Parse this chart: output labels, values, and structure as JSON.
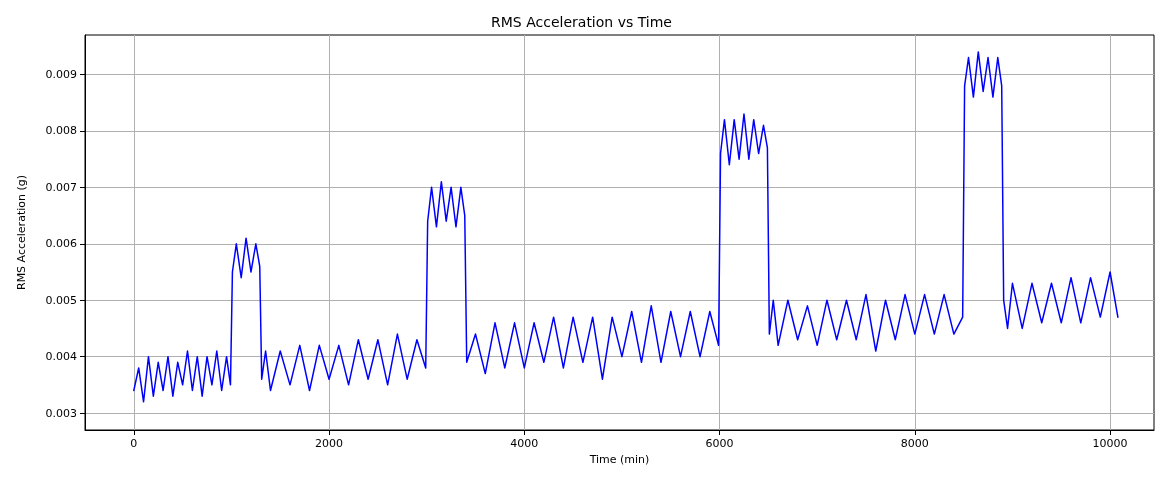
{
  "chart_data": {
    "type": "line",
    "title": "RMS Acceleration vs Time",
    "xlabel": "Time (min)",
    "ylabel": "RMS Acceleration (g)",
    "xlim": [
      -500,
      10450
    ],
    "xticks": [
      0,
      2000,
      4000,
      6000,
      8000,
      10000
    ],
    "ylim": [
      0.0027,
      0.0097
    ],
    "yticks": [
      0.003,
      0.004,
      0.005,
      0.006,
      0.007,
      0.008,
      0.009
    ],
    "grid": true,
    "marker": "none",
    "line_style": "solid",
    "series": [
      {
        "color": "#0000ff",
        "x": [
          0,
          50,
          100,
          150,
          200,
          250,
          300,
          350,
          400,
          450,
          500,
          550,
          600,
          650,
          700,
          750,
          800,
          850,
          900,
          950,
          990,
          1010,
          1050,
          1100,
          1150,
          1200,
          1250,
          1290,
          1310,
          1350,
          1400,
          1500,
          1600,
          1700,
          1800,
          1900,
          2000,
          2100,
          2200,
          2300,
          2400,
          2500,
          2600,
          2700,
          2800,
          2900,
          2990,
          3010,
          3050,
          3100,
          3150,
          3200,
          3250,
          3300,
          3350,
          3390,
          3410,
          3500,
          3600,
          3700,
          3800,
          3900,
          4000,
          4100,
          4200,
          4300,
          4400,
          4500,
          4600,
          4700,
          4800,
          4900,
          5000,
          5100,
          5200,
          5300,
          5400,
          5500,
          5600,
          5700,
          5800,
          5900,
          5990,
          6010,
          6050,
          6100,
          6150,
          6200,
          6250,
          6300,
          6350,
          6400,
          6450,
          6490,
          6510,
          6550,
          6600,
          6700,
          6800,
          6900,
          7000,
          7100,
          7200,
          7300,
          7400,
          7500,
          7600,
          7700,
          7800,
          7900,
          8000,
          8100,
          8200,
          8300,
          8400,
          8490,
          8510,
          8550,
          8600,
          8650,
          8700,
          8750,
          8800,
          8850,
          8890,
          8910,
          8950,
          9000,
          9100,
          9200,
          9300,
          9400,
          9500,
          9600,
          9700,
          9800,
          9900,
          10000,
          10080
        ],
        "values": [
          0.0034,
          0.0038,
          0.0032,
          0.004,
          0.0033,
          0.0039,
          0.0034,
          0.004,
          0.0033,
          0.0039,
          0.0035,
          0.0041,
          0.0034,
          0.004,
          0.0033,
          0.004,
          0.0035,
          0.0041,
          0.0034,
          0.004,
          0.0035,
          0.0055,
          0.006,
          0.0054,
          0.0061,
          0.0055,
          0.006,
          0.0056,
          0.0036,
          0.0041,
          0.0034,
          0.0041,
          0.0035,
          0.0042,
          0.0034,
          0.0042,
          0.0036,
          0.0042,
          0.0035,
          0.0043,
          0.0036,
          0.0043,
          0.0035,
          0.0044,
          0.0036,
          0.0043,
          0.0038,
          0.0064,
          0.007,
          0.0063,
          0.0071,
          0.0064,
          0.007,
          0.0063,
          0.007,
          0.0065,
          0.0039,
          0.0044,
          0.0037,
          0.0046,
          0.0038,
          0.0046,
          0.0038,
          0.0046,
          0.0039,
          0.0047,
          0.0038,
          0.0047,
          0.0039,
          0.0047,
          0.0036,
          0.0047,
          0.004,
          0.0048,
          0.0039,
          0.0049,
          0.0039,
          0.0048,
          0.004,
          0.0048,
          0.004,
          0.0048,
          0.0042,
          0.0076,
          0.0082,
          0.0074,
          0.0082,
          0.0075,
          0.0083,
          0.0075,
          0.0082,
          0.0076,
          0.0081,
          0.0077,
          0.0044,
          0.005,
          0.0042,
          0.005,
          0.0043,
          0.0049,
          0.0042,
          0.005,
          0.0043,
          0.005,
          0.0043,
          0.0051,
          0.0041,
          0.005,
          0.0043,
          0.0051,
          0.0044,
          0.0051,
          0.0044,
          0.0051,
          0.0044,
          0.0047,
          0.0088,
          0.0093,
          0.0086,
          0.0094,
          0.0087,
          0.0093,
          0.0086,
          0.0093,
          0.0088,
          0.005,
          0.0045,
          0.0053,
          0.0045,
          0.0053,
          0.0046,
          0.0053,
          0.0046,
          0.0054,
          0.0046,
          0.0054,
          0.0047,
          0.0055,
          0.0047
        ]
      }
    ]
  }
}
